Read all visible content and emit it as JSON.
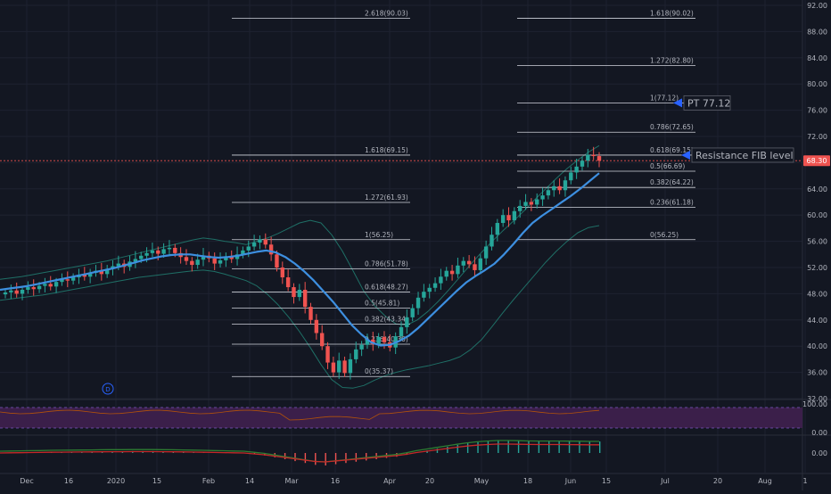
{
  "colors": {
    "background": "#131722",
    "grid": "#1e2230",
    "text": "#b2b5be",
    "candle_up": "#26a69a",
    "candle_down": "#ef5350",
    "sma": "#3d8fe0",
    "bands": "#1f6f66",
    "fib": "#d1d4dc",
    "current_price_bg": "#ef5350",
    "rsi_line": "#b45309",
    "rsi_fill": "#3b1f4a",
    "annotation_arrow": "#2962ff"
  },
  "chart_data": {
    "type": "candlestick",
    "price_axis": {
      "range": [
        32,
        92
      ],
      "ticks": [
        32,
        36,
        40,
        44,
        48,
        52,
        56,
        60,
        64,
        68,
        72,
        76,
        80,
        84,
        88,
        92
      ],
      "labels": [
        "32.00",
        "36.00",
        "40.00",
        "44.00",
        "48.00",
        "52.00",
        "56.00",
        "60.00",
        "64.00",
        "68.00",
        "72.00",
        "76.00",
        "80.00",
        "84.00",
        "88.00",
        "92.00"
      ]
    },
    "current_price": {
      "value": 68.3,
      "label": "68.30"
    },
    "time_axis": {
      "labels": [
        "Dec",
        "16",
        "2020",
        "15",
        "Feb",
        "14",
        "Mar",
        "16",
        "Apr",
        "20",
        "May",
        "18",
        "Jun",
        "15",
        "Jul",
        "20",
        "Aug",
        "1"
      ]
    },
    "candles_close": [
      48.2,
      48.5,
      48.0,
      48.6,
      49.0,
      48.7,
      49.2,
      49.5,
      49.1,
      49.8,
      50.2,
      50.0,
      50.5,
      50.9,
      50.6,
      51.2,
      51.5,
      51.0,
      51.8,
      52.2,
      52.6,
      52.1,
      52.9,
      53.3,
      53.8,
      54.2,
      54.6,
      54.1,
      54.8,
      55.0,
      54.2,
      53.6,
      53.0,
      52.4,
      53.2,
      53.8,
      53.4,
      52.6,
      53.1,
      53.7,
      53.3,
      54.0,
      54.6,
      55.2,
      55.8,
      56.3,
      55.5,
      54.0,
      52.0,
      50.5,
      49.0,
      47.5,
      48.6,
      46.0,
      44.0,
      42.0,
      40.0,
      37.5,
      36.0,
      37.8,
      35.9,
      38.0,
      39.5,
      40.2,
      41.0,
      40.3,
      41.4,
      40.6,
      39.8,
      41.5,
      42.9,
      44.4,
      45.8,
      47.4,
      48.3,
      48.9,
      49.6,
      50.6,
      51.5,
      51.0,
      52.3,
      53.0,
      52.5,
      51.6,
      53.4,
      55.2,
      57.0,
      58.8,
      60.0,
      59.2,
      60.6,
      61.4,
      62.0,
      61.6,
      62.4,
      63.0,
      63.8,
      64.4,
      63.8,
      65.3,
      66.5,
      67.4,
      68.3,
      69.2,
      69.0,
      68.3
    ],
    "sma_values": [
      48.6,
      48.8,
      49.0,
      49.2,
      49.5,
      49.8,
      50.1,
      50.4,
      50.7,
      51.0,
      51.3,
      51.6,
      51.9,
      52.3,
      52.7,
      53.1,
      53.4,
      53.7,
      53.9,
      54.0,
      54.0,
      53.8,
      53.6,
      53.5,
      53.6,
      53.8,
      54.1,
      54.4,
      54.6,
      54.3,
      53.6,
      52.6,
      51.4,
      50.0,
      48.4,
      46.8,
      45.0,
      43.2,
      41.8,
      40.6,
      40.1,
      40.2,
      40.8,
      41.6,
      42.8,
      44.2,
      45.6,
      47.0,
      48.4,
      49.7,
      50.7,
      51.6,
      52.6,
      54.0,
      55.6,
      57.3,
      58.8,
      59.9,
      60.9,
      61.9,
      62.9,
      64.0,
      65.2,
      66.4
    ],
    "bollinger_upper": [
      50.2,
      50.4,
      50.6,
      50.9,
      51.2,
      51.5,
      51.8,
      52.1,
      52.4,
      52.7,
      53.0,
      53.4,
      53.8,
      54.2,
      54.6,
      55.0,
      55.4,
      55.8,
      56.2,
      56.5,
      56.3,
      56.0,
      55.8,
      55.5,
      56.0,
      56.5,
      57.2,
      58.0,
      58.8,
      59.2,
      58.8,
      57.0,
      54.5,
      51.5,
      48.4,
      46.2,
      44.6,
      43.4,
      43.2,
      44.0,
      45.3,
      46.9,
      48.7,
      50.6,
      52.5,
      54.3,
      56.0,
      57.6,
      59.1,
      60.7,
      62.4,
      64.0,
      65.6,
      67.1,
      68.4,
      69.6,
      70.6
    ],
    "bollinger_lower": [
      47.0,
      47.2,
      47.4,
      47.6,
      47.8,
      48.1,
      48.4,
      48.7,
      49.0,
      49.3,
      49.6,
      49.9,
      50.2,
      50.5,
      50.7,
      50.9,
      51.1,
      51.3,
      51.5,
      51.6,
      51.4,
      51.0,
      50.5,
      50.0,
      49.2,
      47.9,
      46.3,
      44.4,
      42.2,
      39.8,
      37.2,
      34.9,
      33.7,
      33.6,
      34.0,
      34.8,
      35.5,
      36.0,
      36.4,
      36.7,
      37.0,
      37.4,
      37.8,
      38.4,
      39.5,
      41.0,
      43.0,
      45.1,
      47.1,
      49.0,
      50.9,
      52.8,
      54.5,
      56.0,
      57.3,
      58.1,
      58.4
    ],
    "fib_left": {
      "levels": [
        {
          "ratio_label": "2.618(90.03)",
          "value": 90.03
        },
        {
          "ratio_label": "1.618(69.15)",
          "value": 69.15
        },
        {
          "ratio_label": "1.272(61.93)",
          "value": 61.93
        },
        {
          "ratio_label": "1(56.25)",
          "value": 56.25
        },
        {
          "ratio_label": "0.786(51.78)",
          "value": 51.78
        },
        {
          "ratio_label": "0.618(48.27)",
          "value": 48.27
        },
        {
          "ratio_label": "0.5(45.81)",
          "value": 45.81
        },
        {
          "ratio_label": "0.382(43.34)",
          "value": 43.34
        },
        {
          "ratio_label": "0.236(40.30)",
          "value": 40.3
        },
        {
          "ratio_label": "0(35.37)",
          "value": 35.37
        }
      ]
    },
    "fib_right": {
      "levels": [
        {
          "ratio_label": "1.618(90.02)",
          "value": 90.02
        },
        {
          "ratio_label": "1.272(82.80)",
          "value": 82.8
        },
        {
          "ratio_label": "1(77.12)",
          "value": 77.12
        },
        {
          "ratio_label": "0.786(72.65)",
          "value": 72.65
        },
        {
          "ratio_label": "0.618(69.15)",
          "value": 69.15
        },
        {
          "ratio_label": "0.5(66.69)",
          "value": 66.69
        },
        {
          "ratio_label": "0.382(64.22)",
          "value": 64.22
        },
        {
          "ratio_label": "0.236(61.18)",
          "value": 61.18
        },
        {
          "ratio_label": "0(56.25)",
          "value": 56.25
        }
      ]
    },
    "annotations": [
      {
        "text": "PT 77.12",
        "price": 77.12
      },
      {
        "text": "Resistance FIB level",
        "price": 69.15
      }
    ],
    "event_marker": "D",
    "rsi_panel": {
      "axis_labels": [
        "100.00",
        "0.00"
      ]
    },
    "macd_panel": {
      "axis_labels": [
        "0.00"
      ],
      "histogram": [
        0,
        0.02,
        0.03,
        0.05,
        0.06,
        0.08,
        0.09,
        0.1,
        0.11,
        0.12,
        0.13,
        0.14,
        0.14,
        0.15,
        0.15,
        0.15,
        0.14,
        0.13,
        0.12,
        0.1,
        0.08,
        0.06,
        0.04,
        0.02,
        0.0,
        -0.1,
        -0.2,
        -0.35,
        -0.5,
        -0.65,
        -0.8,
        -0.95,
        -1.0,
        -0.9,
        -0.8,
        -0.7,
        -0.6,
        -0.5,
        -0.4,
        -0.3,
        -0.15,
        0.05,
        0.2,
        0.35,
        0.5,
        0.65,
        0.78,
        0.88,
        0.95,
        1.0,
        1.0,
        0.98,
        0.96,
        0.95,
        0.95,
        0.95,
        0.94,
        0.93,
        0.92,
        0.92
      ]
    }
  }
}
